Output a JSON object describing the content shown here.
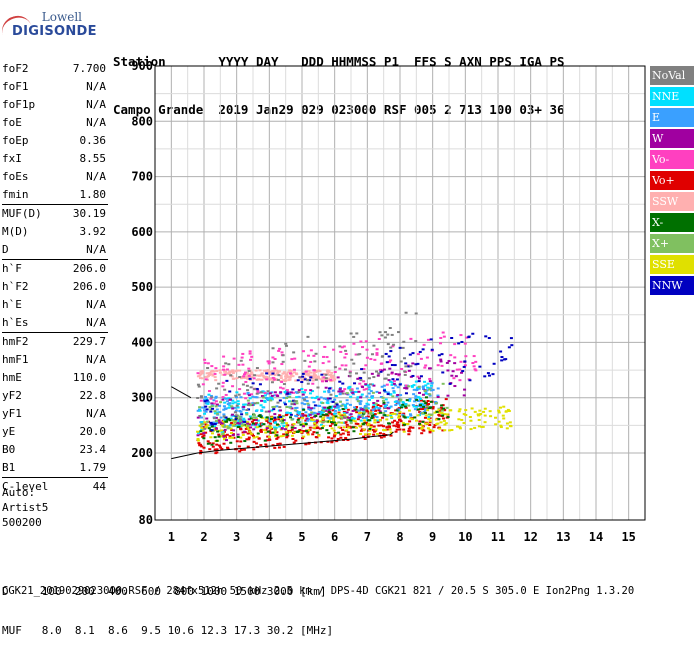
{
  "logo": {
    "line1": "Lowell",
    "line2": "DIGISONDE"
  },
  "header": {
    "row1": "Station       YYYY DAY   DDD HHMMSS P1  FFS S AXN PPS IGA PS",
    "row2": "Campo Grande  2019 Jan29 029 023000 RSF 005 2 713 100 03+ 36"
  },
  "params": {
    "group1": [
      {
        "k": "foF2",
        "v": "7.700"
      },
      {
        "k": "foF1",
        "v": "N/A"
      },
      {
        "k": "foF1p",
        "v": "N/A"
      },
      {
        "k": "foE",
        "v": "N/A"
      },
      {
        "k": "foEp",
        "v": "0.36"
      },
      {
        "k": "fxI",
        "v": "8.55"
      },
      {
        "k": "foEs",
        "v": "N/A"
      },
      {
        "k": "fmin",
        "v": "1.80"
      }
    ],
    "group2": [
      {
        "k": "MUF(D)",
        "v": "30.19"
      },
      {
        "k": "M(D)",
        "v": "3.92"
      },
      {
        "k": "D",
        "v": "N/A"
      }
    ],
    "group3": [
      {
        "k": "h`F",
        "v": "206.0"
      },
      {
        "k": "h`F2",
        "v": "206.0"
      },
      {
        "k": "h`E",
        "v": "N/A"
      },
      {
        "k": "h`Es",
        "v": "N/A"
      }
    ],
    "group4": [
      {
        "k": "hmF2",
        "v": "229.7"
      },
      {
        "k": "hmF1",
        "v": "N/A"
      },
      {
        "k": "hmE",
        "v": "110.0"
      },
      {
        "k": "yF2",
        "v": "22.8"
      },
      {
        "k": "yF1",
        "v": "N/A"
      },
      {
        "k": "yE",
        "v": "20.0"
      },
      {
        "k": "B0",
        "v": "23.4"
      },
      {
        "k": "B1",
        "v": "1.79"
      }
    ],
    "group5": [
      {
        "k": "C-level",
        "v": "44"
      }
    ]
  },
  "auto": {
    "line1": "Auto:",
    "line2": "Artist5",
    "line3": "500200"
  },
  "bottom": {
    "d_row": "D     100  200  400  600  800 1000 1500 3000 [km]",
    "muf_row": "MUF   8.0  8.1  8.6  9.5 10.6 12.3 17.3 30.2 [MHz]"
  },
  "footer": "CGK21_2019029023000.RSF / 284fx512h 50 kHz 2.5 km / DPS-4D CGK21 821 / 20.5 S 305.0 E Ion2Png 1.3.20",
  "legend": [
    {
      "label": "NoVal",
      "color": "#808080"
    },
    {
      "label": "NNE",
      "color": "#00e0ff"
    },
    {
      "label": "E",
      "color": "#3aa0ff"
    },
    {
      "label": "W",
      "color": "#a000a0"
    },
    {
      "label": "Vo-",
      "color": "#ff40c0"
    },
    {
      "label": "Vo+",
      "color": "#e00000"
    },
    {
      "label": "SSW",
      "color": "#ffb0b0"
    },
    {
      "label": "X-",
      "color": "#007000"
    },
    {
      "label": "X+",
      "color": "#80c060"
    },
    {
      "label": "SSE",
      "color": "#e0e000"
    },
    {
      "label": "NNW",
      "color": "#0000c0"
    }
  ],
  "chart_data": {
    "type": "scatter",
    "xlabel": "",
    "ylabel": "",
    "x_ticks": [
      "1",
      "2",
      "3",
      "4",
      "5",
      "6",
      "7",
      "8",
      "9",
      "10",
      "11",
      "12",
      "13",
      "14",
      "15"
    ],
    "y_ticks": [
      "80",
      "200",
      "300",
      "400",
      "500",
      "600",
      "700",
      "800",
      "900"
    ],
    "xlim": [
      1,
      15
    ],
    "ylim": [
      80,
      900
    ],
    "grid": true,
    "legend_position": "right",
    "trace_curve": {
      "x": [
        1.0,
        1.8,
        2.5,
        3.5,
        4.5,
        5.5,
        6.5,
        7.2,
        7.7,
        7.8
      ],
      "y": [
        190,
        200,
        205,
        210,
        215,
        220,
        225,
        230,
        233,
        238
      ]
    },
    "trace_curve_upper": {
      "x": [
        1.0,
        1.6
      ],
      "y": [
        320,
        300
      ]
    },
    "echo_clusters": [
      {
        "name": "Vo+",
        "color": "#e00000",
        "x_range": [
          1.8,
          9.5
        ],
        "y_center_start": 225,
        "y_center_end": 270,
        "spread": 30,
        "count": 420
      },
      {
        "name": "E",
        "color": "#3aa0ff",
        "x_range": [
          1.8,
          9.2
        ],
        "y_center_start": 275,
        "y_center_end": 300,
        "spread": 30,
        "count": 300
      },
      {
        "name": "NNE",
        "color": "#00e0ff",
        "x_range": [
          1.8,
          9.0
        ],
        "y_center_start": 270,
        "y_center_end": 300,
        "spread": 35,
        "count": 200
      },
      {
        "name": "SSE",
        "color": "#e0e000",
        "x_range": [
          1.8,
          11.5
        ],
        "y_center_start": 240,
        "y_center_end": 265,
        "spread": 20,
        "count": 260
      },
      {
        "name": "SSW",
        "color": "#ffb0b0",
        "x_range": [
          1.8,
          6.0
        ],
        "y_center_start": 340,
        "y_center_end": 340,
        "spread": 10,
        "count": 220
      },
      {
        "name": "Vo-",
        "color": "#ff40c0",
        "x_range": [
          1.8,
          10.5
        ],
        "y_center_start": 330,
        "y_center_end": 380,
        "spread": 45,
        "count": 180
      },
      {
        "name": "W",
        "color": "#a000a0",
        "x_range": [
          1.8,
          10.0
        ],
        "y_center_start": 250,
        "y_center_end": 340,
        "spread": 40,
        "count": 150
      },
      {
        "name": "X-",
        "color": "#007000",
        "x_range": [
          1.8,
          9.5
        ],
        "y_center_start": 235,
        "y_center_end": 280,
        "spread": 25,
        "count": 120
      },
      {
        "name": "X+",
        "color": "#80c060",
        "x_range": [
          1.8,
          9.5
        ],
        "y_center_start": 260,
        "y_center_end": 300,
        "spread": 30,
        "count": 100
      },
      {
        "name": "NNW",
        "color": "#0000c0",
        "x_range": [
          2.0,
          11.5
        ],
        "y_center_start": 280,
        "y_center_end": 390,
        "spread": 45,
        "count": 110
      },
      {
        "name": "NoVal",
        "color": "#808080",
        "x_range": [
          1.8,
          8.5
        ],
        "y_center_start": 300,
        "y_center_end": 400,
        "spread": 60,
        "count": 120
      }
    ]
  }
}
